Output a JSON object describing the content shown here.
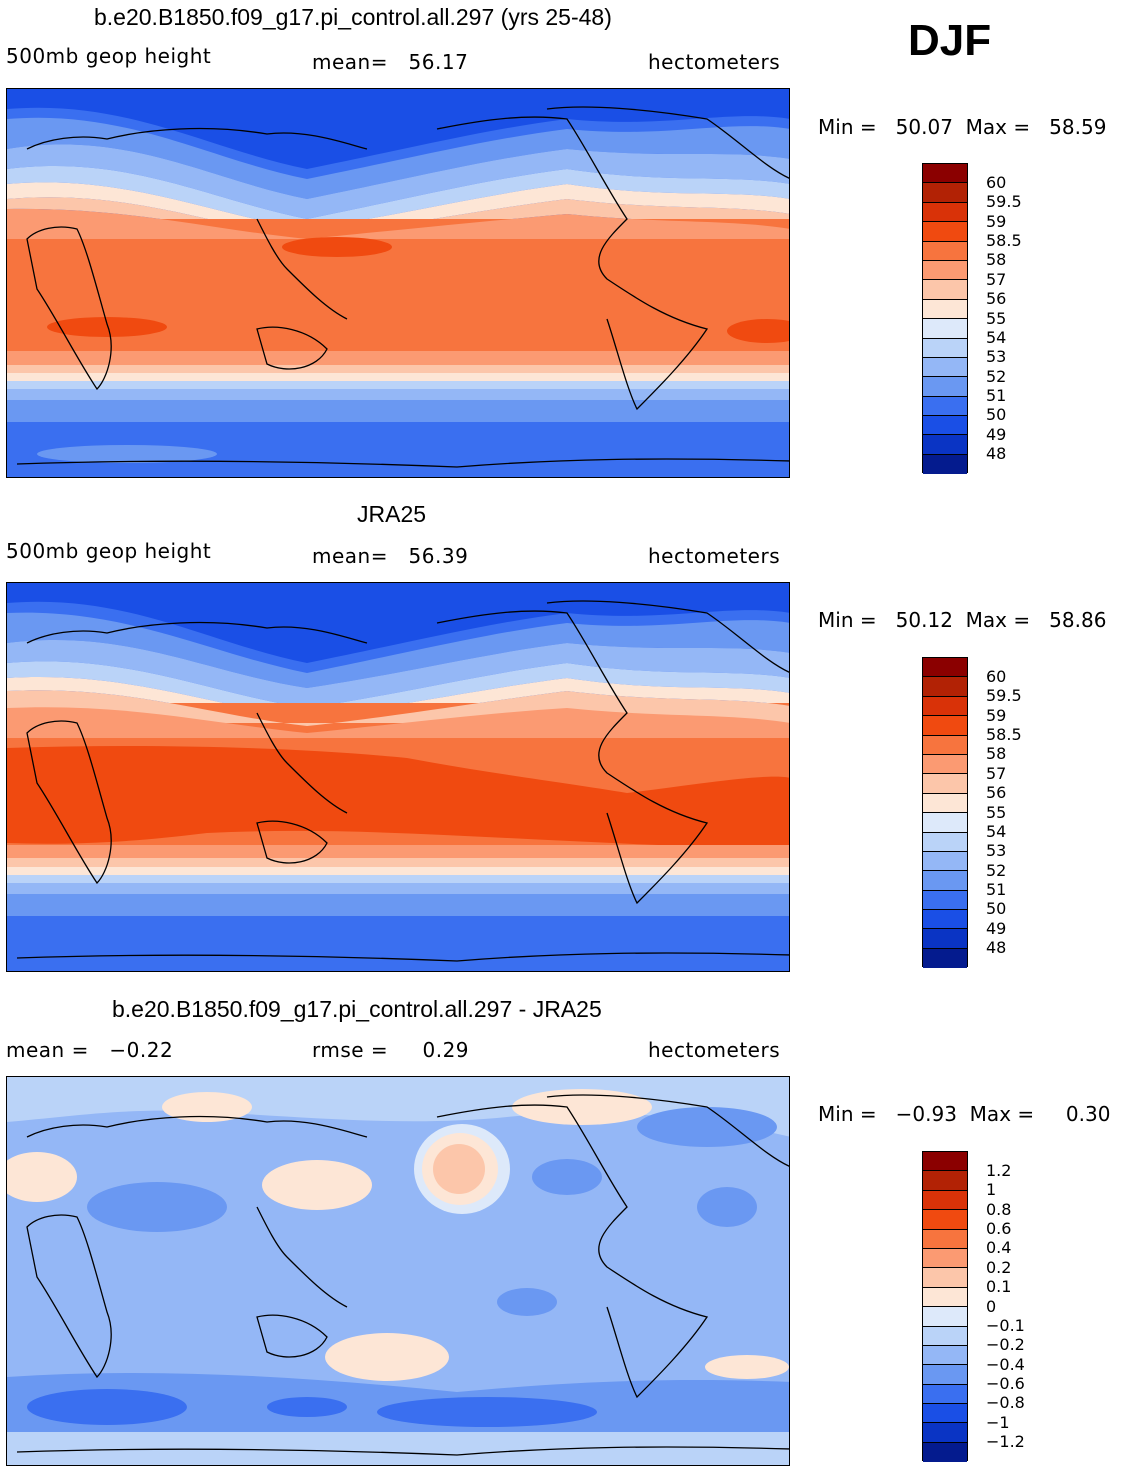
{
  "season": "DJF",
  "panels": [
    {
      "title": "b.e20.B1850.f09_g17.pi_control.all.297 (yrs 25-48)",
      "left": "500mb geop height",
      "middle": "mean=   56.17",
      "right": "hectometers",
      "minmax": "Min =   50.07  Max =   58.59",
      "labels": [
        "60",
        "59.5",
        "59",
        "58.5",
        "58",
        "57",
        "56",
        "55",
        "54",
        "53",
        "52",
        "51",
        "50",
        "49",
        "48"
      ]
    },
    {
      "title": "JRA25",
      "left": "500mb geop height",
      "middle": "mean=   56.39",
      "right": "hectometers",
      "minmax": "Min =   50.12  Max =   58.86",
      "labels": [
        "60",
        "59.5",
        "59",
        "58.5",
        "58",
        "57",
        "56",
        "55",
        "54",
        "53",
        "52",
        "51",
        "50",
        "49",
        "48"
      ]
    },
    {
      "title": "b.e20.B1850.f09_g17.pi_control.all.297 - JRA25",
      "left": "mean =   −0.22",
      "middle": "rmse =     0.29",
      "right": "hectometers",
      "minmax": "Min =   −0.93  Max =     0.30",
      "labels": [
        "1.2",
        "1",
        "0.8",
        "0.6",
        "0.4",
        "0.2",
        "0.1",
        "0",
        "−0.1",
        "−0.2",
        "−0.4",
        "−0.6",
        "−0.8",
        "−1",
        "−1.2"
      ]
    }
  ],
  "colorbar_colors": [
    "#8b0000",
    "#b22205",
    "#d93208",
    "#f04a10",
    "#f7743e",
    "#fb9a72",
    "#fcc6aa",
    "#fde6d6",
    "#dde9fa",
    "#bad3f8",
    "#94b7f6",
    "#6a98f2",
    "#3a6ff0",
    "#1a4fe6",
    "#0a34c4",
    "#041b8e"
  ],
  "map_colors": {
    "deep_blue": "#1a4fe6",
    "blue": "#3a6ff0",
    "mid_blue": "#6a98f2",
    "light_blue": "#94b7f6",
    "pale_blue": "#bad3f8",
    "very_pale_blue": "#dde9fa",
    "pale_orange": "#fde6d6",
    "light_orange": "#fcc6aa",
    "salmon": "#fb9a72",
    "orange": "#f7743e",
    "red_orange": "#f04a10"
  }
}
